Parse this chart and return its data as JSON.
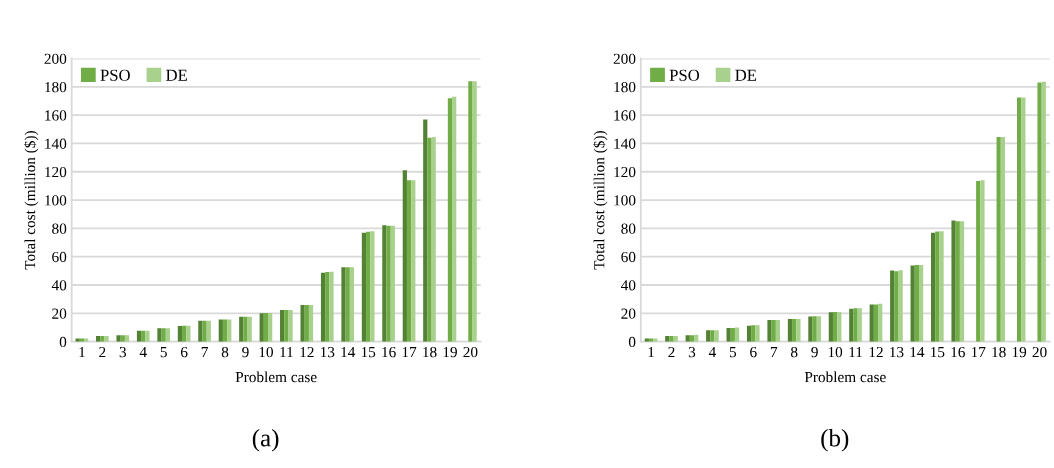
{
  "chart_data": [
    {
      "type": "bar",
      "xlabel": "Problem case",
      "ylabel": "Total cost (million ($))",
      "annotations": [
        "(a)"
      ],
      "categories": [
        "1",
        "2",
        "3",
        "4",
        "5",
        "6",
        "7",
        "8",
        "9",
        "10",
        "11",
        "12",
        "13",
        "14",
        "15",
        "16",
        "17",
        "18",
        "19",
        "20"
      ],
      "series": [
        {
          "color": "#548235",
          "values": [
            2.2,
            4,
            4.5,
            7.7,
            9.5,
            11,
            14.8,
            15.6,
            17.5,
            20,
            22.3,
            25.9,
            48.7,
            52.5,
            77,
            82.3,
            121,
            157,
            null,
            null
          ]
        },
        {
          "name": "PSO",
          "color": "#70ad47",
          "values": [
            2.2,
            4,
            4.5,
            7.7,
            9.5,
            11.2,
            14.8,
            15.6,
            17.5,
            20.2,
            22.3,
            25.9,
            49.2,
            52.5,
            77.7,
            81.8,
            114,
            144,
            172,
            184
          ]
        },
        {
          "name": "DE",
          "color": "#a9d18e",
          "values": [
            2.2,
            4,
            4.5,
            7.7,
            9.5,
            11.3,
            14.8,
            15.6,
            17.5,
            20.3,
            22.3,
            25.9,
            49.4,
            52.5,
            78,
            81.8,
            114,
            144.5,
            173,
            184
          ]
        }
      ],
      "ylim": [
        0,
        200
      ],
      "yticks": [
        0,
        20,
        40,
        60,
        80,
        100,
        120,
        140,
        160,
        180,
        200
      ],
      "grid": "y",
      "legend": "top left"
    },
    {
      "type": "bar",
      "xlabel": "Problem case",
      "ylabel": "Total cost (million ($))",
      "annotations": [
        "(b)"
      ],
      "categories": [
        "1",
        "2",
        "3",
        "4",
        "5",
        "6",
        "7",
        "8",
        "9",
        "10",
        "11",
        "12",
        "13",
        "14",
        "15",
        "16",
        "17",
        "18",
        "19",
        "20"
      ],
      "series": [
        {
          "color": "#548235",
          "values": [
            2.2,
            4,
            4.5,
            8,
            9.7,
            11.3,
            15.2,
            16,
            17.7,
            20.8,
            23.2,
            26.3,
            50.2,
            53.8,
            77,
            85.5,
            null,
            null,
            null,
            null
          ]
        },
        {
          "name": "PSO",
          "color": "#70ad47",
          "values": [
            2.2,
            4,
            4.5,
            8,
            9.7,
            11.6,
            15.2,
            16,
            18,
            21,
            23.5,
            26.3,
            49.8,
            54.2,
            77.8,
            85,
            113.5,
            144.5,
            172.5,
            183
          ]
        },
        {
          "name": "DE",
          "color": "#a9d18e",
          "values": [
            2.2,
            4,
            4.8,
            8,
            10,
            11.6,
            15.2,
            16,
            18,
            21,
            23.5,
            26.7,
            50.5,
            54.2,
            78,
            85,
            114,
            144.5,
            172.5,
            183.5
          ]
        }
      ],
      "ylim": [
        0,
        200
      ],
      "yticks": [
        0,
        20,
        40,
        60,
        80,
        100,
        120,
        140,
        160,
        180,
        200
      ],
      "grid": "y",
      "legend": "top left"
    }
  ]
}
